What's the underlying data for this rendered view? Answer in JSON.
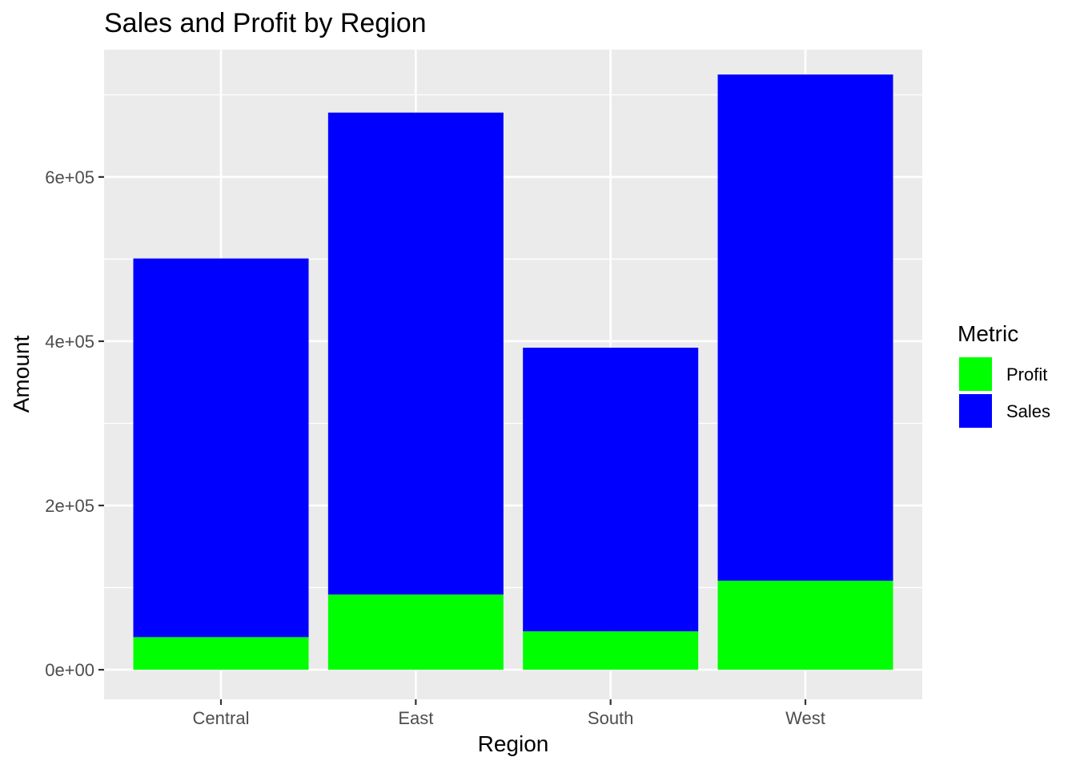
{
  "chart_data": {
    "type": "bar",
    "stacked": true,
    "title": "Sales and Profit by Region",
    "xlabel": "Region",
    "ylabel": "Amount",
    "categories": [
      "Central",
      "East",
      "South",
      "West"
    ],
    "series": [
      {
        "name": "Profit",
        "color": "#00ff00",
        "values": [
          39706,
          91523,
          46749,
          108418
        ]
      },
      {
        "name": "Sales",
        "color": "#0000ff",
        "values": [
          461048,
          586820,
          345346,
          616336
        ]
      }
    ],
    "ylim": [
      -36000,
      755000
    ],
    "yticks": [
      0,
      200000,
      400000,
      600000
    ],
    "ytick_labels": [
      "0e+00",
      "2e+05",
      "4e+05",
      "6e+05"
    ],
    "grid": true,
    "panel_background": "#ebebeb",
    "grid_color": "#ffffff",
    "legend": {
      "title": "Metric",
      "position": "right",
      "items": [
        {
          "label": "Profit",
          "color": "#00ff00"
        },
        {
          "label": "Sales",
          "color": "#0000ff"
        }
      ]
    }
  }
}
